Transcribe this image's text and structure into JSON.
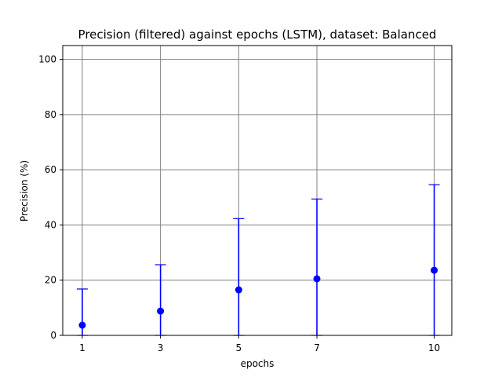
{
  "chart_data": {
    "type": "scatter",
    "title": "Precision (filtered) against epochs (LSTM), dataset: Balanced",
    "xlabel": "epochs",
    "ylabel": "Precision (%)",
    "x": [
      1,
      3,
      5,
      7,
      10
    ],
    "series": [
      {
        "values": [
          3.7,
          8.8,
          16.5,
          20.5,
          23.6
        ],
        "error_upper": [
          16.8,
          25.6,
          42.3,
          49.4,
          54.6
        ],
        "error_lower": [
          0,
          0,
          0,
          0,
          0
        ],
        "color": "#0000ff"
      }
    ],
    "xticks": [
      "1",
      "3",
      "5",
      "7",
      "10"
    ],
    "yticks": [
      "0",
      "20",
      "40",
      "60",
      "80",
      "100"
    ],
    "xlim": [
      0.5,
      10.45
    ],
    "ylim": [
      0,
      105
    ],
    "grid": true,
    "grid_color": "#808080"
  }
}
